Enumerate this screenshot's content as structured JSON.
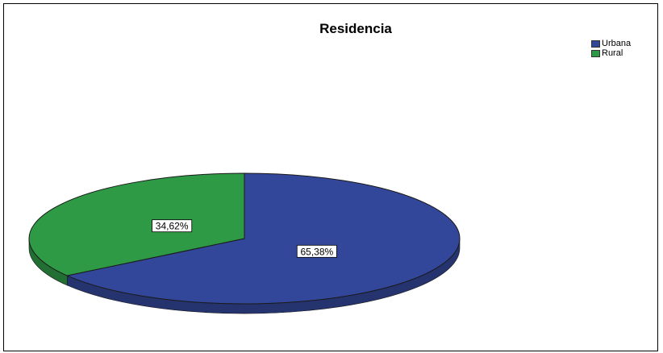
{
  "chart_data": {
    "type": "pie",
    "title": "Residencia",
    "categories": [
      "Urbana",
      "Rural"
    ],
    "values": [
      65.38,
      34.62
    ],
    "labels": [
      "65,38%",
      "34,62%"
    ],
    "colors": [
      "#33479a",
      "#2e9a45"
    ],
    "legend": {
      "position": "top-right",
      "entries": [
        "Urbana",
        "Rural"
      ]
    }
  }
}
